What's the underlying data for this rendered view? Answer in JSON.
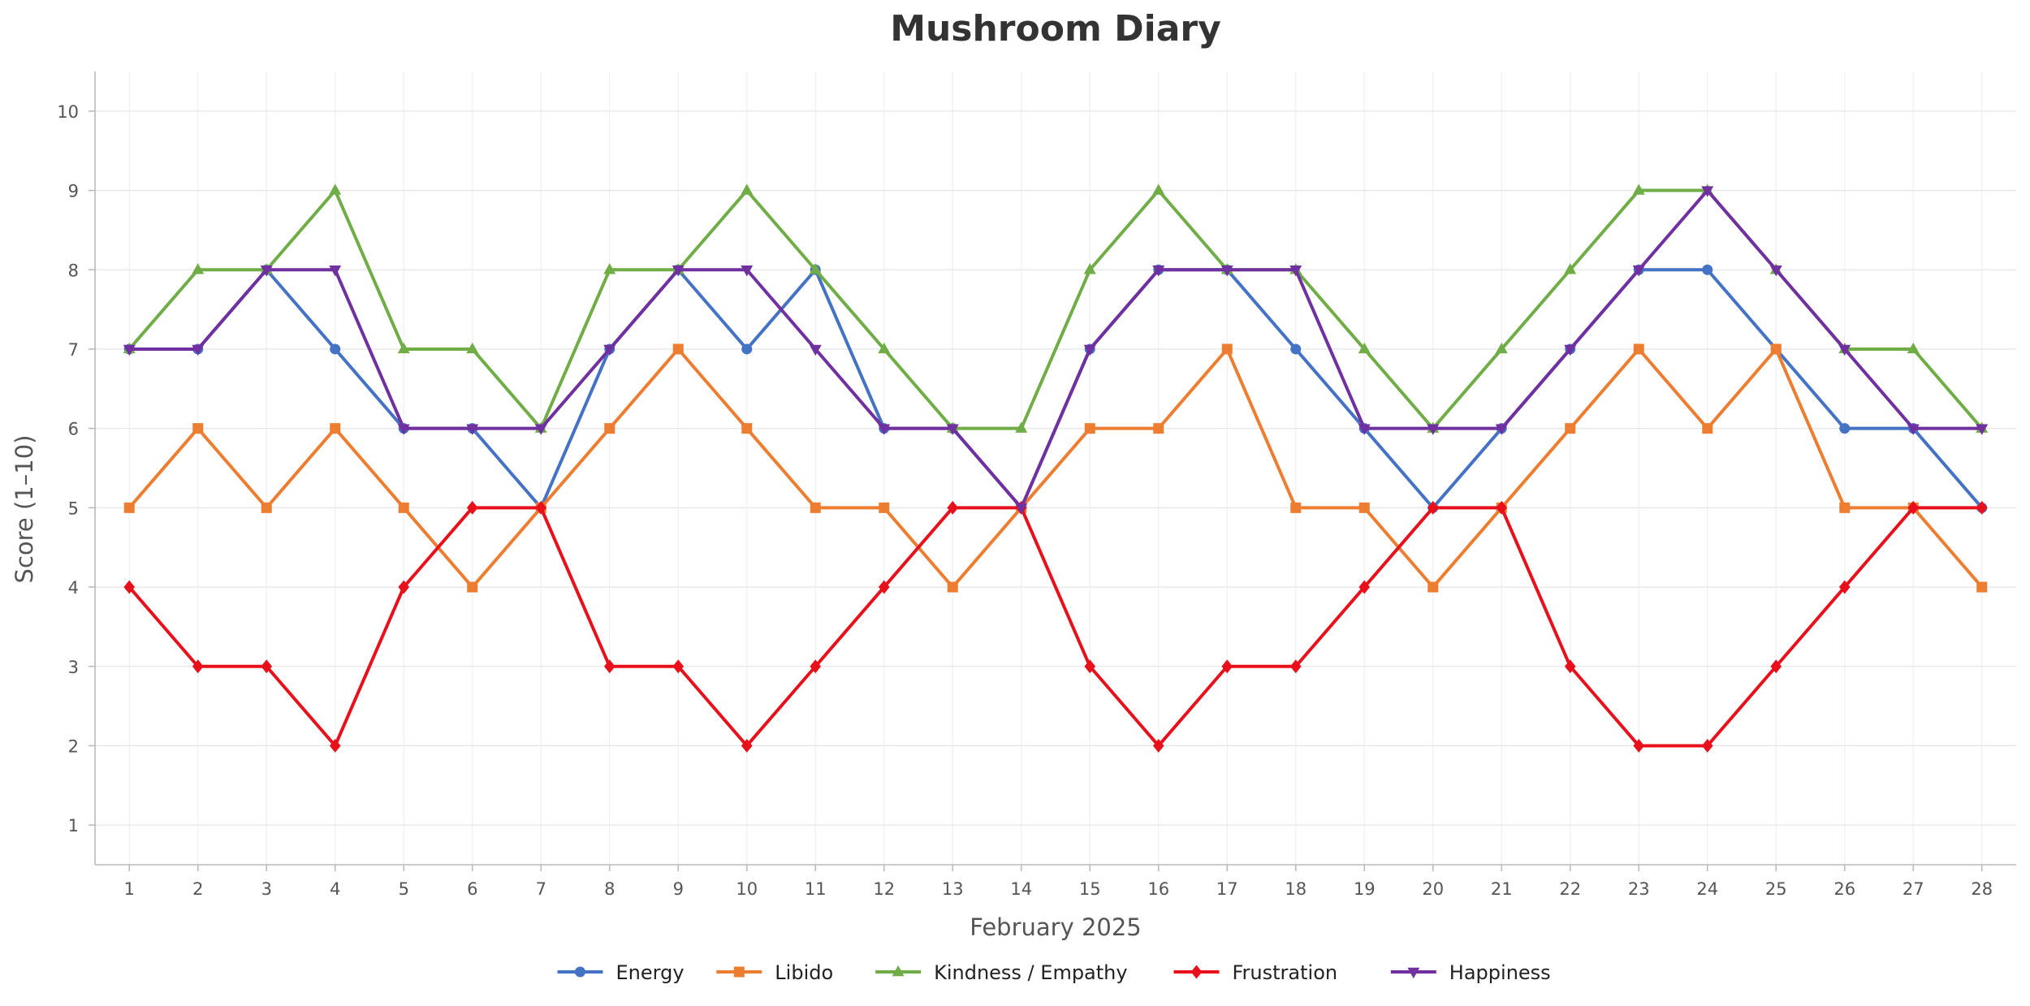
{
  "chart_data": {
    "type": "line",
    "title": "Mushroom Diary",
    "xlabel": "February 2025",
    "ylabel": "Score (1–10)",
    "x": [
      1,
      2,
      3,
      4,
      5,
      6,
      7,
      8,
      9,
      10,
      11,
      12,
      13,
      14,
      15,
      16,
      17,
      18,
      19,
      20,
      21,
      22,
      23,
      24,
      25,
      26,
      27,
      28
    ],
    "xlim": [
      0.5,
      28.5
    ],
    "ylim": [
      0.5,
      10.5
    ],
    "yticks": [
      1,
      2,
      3,
      4,
      5,
      6,
      7,
      8,
      9,
      10
    ],
    "grid": true,
    "legend_position": "bottom",
    "series": [
      {
        "name": "Energy",
        "color": "#4472c4",
        "marker": "circle",
        "values": [
          7,
          7,
          8,
          7,
          6,
          6,
          5,
          7,
          8,
          7,
          8,
          6,
          6,
          5,
          7,
          8,
          8,
          7,
          6,
          5,
          6,
          7,
          8,
          8,
          7,
          6,
          6,
          5
        ]
      },
      {
        "name": "Libido",
        "color": "#ed7d31",
        "marker": "square",
        "values": [
          5,
          6,
          5,
          6,
          5,
          4,
          5,
          6,
          7,
          6,
          5,
          5,
          4,
          5,
          6,
          6,
          7,
          5,
          5,
          4,
          5,
          6,
          7,
          6,
          7,
          5,
          5,
          4
        ]
      },
      {
        "name": "Kindness / Empathy",
        "color": "#70ad47",
        "marker": "triangle-up",
        "values": [
          7,
          8,
          8,
          9,
          7,
          7,
          6,
          8,
          8,
          9,
          8,
          7,
          6,
          6,
          8,
          9,
          8,
          8,
          7,
          6,
          7,
          8,
          9,
          9,
          8,
          7,
          7,
          6
        ]
      },
      {
        "name": "Frustration",
        "color": "#e8101b",
        "marker": "diamond",
        "values": [
          4,
          3,
          3,
          2,
          4,
          5,
          5,
          3,
          3,
          2,
          3,
          4,
          5,
          5,
          3,
          2,
          3,
          3,
          4,
          5,
          5,
          3,
          2,
          2,
          3,
          4,
          5,
          5
        ]
      },
      {
        "name": "Happiness",
        "color": "#7030a0",
        "marker": "triangle-down",
        "values": [
          7,
          7,
          8,
          8,
          6,
          6,
          6,
          7,
          8,
          8,
          7,
          6,
          6,
          5,
          7,
          8,
          8,
          8,
          6,
          6,
          6,
          7,
          8,
          9,
          8,
          7,
          6,
          6
        ]
      }
    ]
  }
}
